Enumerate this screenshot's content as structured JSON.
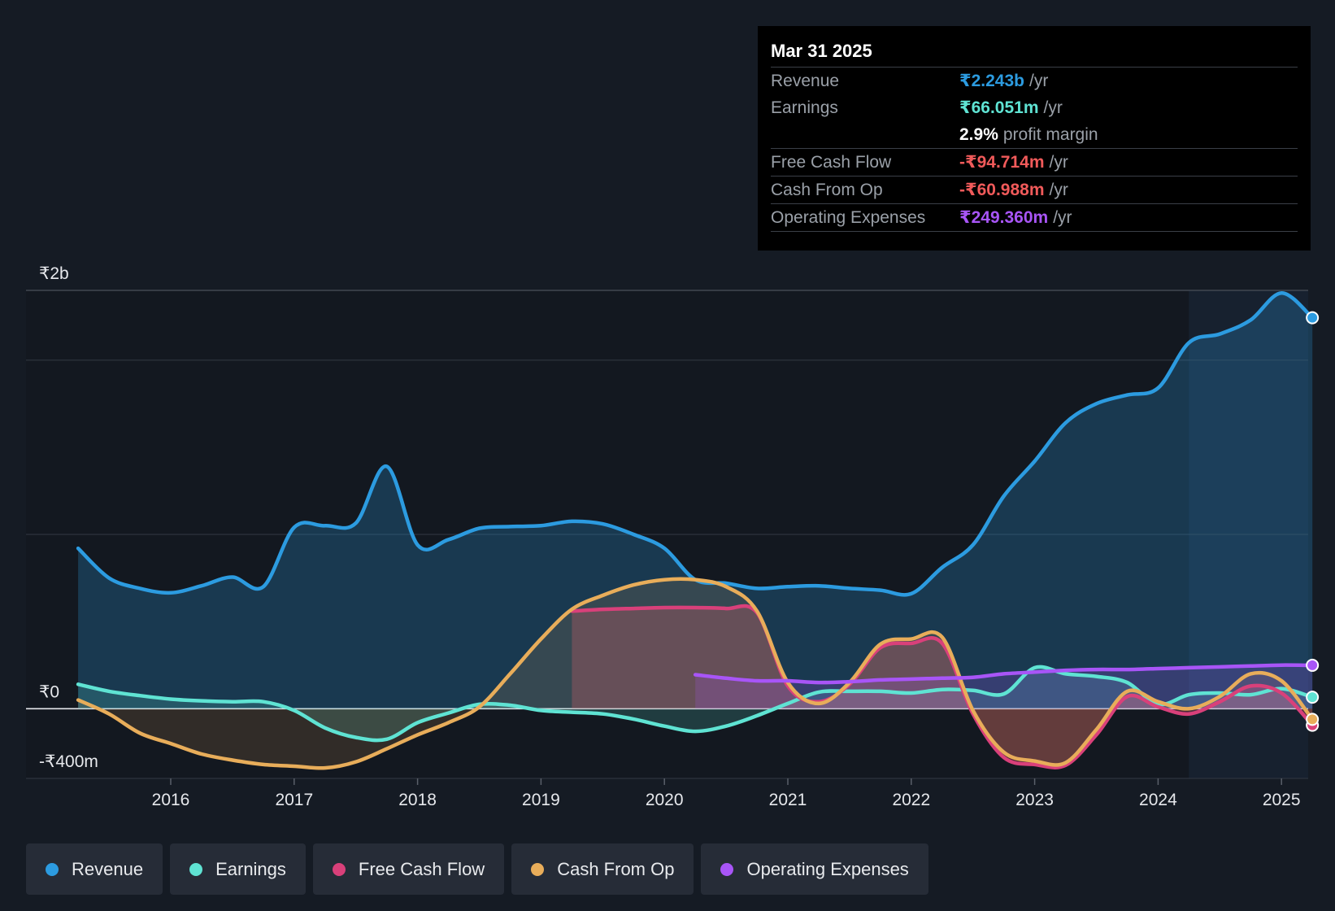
{
  "tooltip": {
    "date": "Mar 31 2025",
    "revenue": {
      "label": "Revenue",
      "value": "₹2.243b",
      "unit": "/yr",
      "color": "#2c9be0"
    },
    "earnings": {
      "label": "Earnings",
      "value": "₹66.051m",
      "unit": "/yr",
      "color": "#5fe3d3"
    },
    "margin": {
      "value": "2.9%",
      "text": "profit margin"
    },
    "fcf": {
      "label": "Free Cash Flow",
      "value": "-₹94.714m",
      "unit": "/yr",
      "color": "#f05a5a"
    },
    "cfo": {
      "label": "Cash From Op",
      "value": "-₹60.988m",
      "unit": "/yr",
      "color": "#f05a5a"
    },
    "opex": {
      "label": "Operating Expenses",
      "value": "₹249.360m",
      "unit": "/yr",
      "color": "#a855f7"
    }
  },
  "legend": [
    {
      "label": "Revenue",
      "color": "#2c9be0"
    },
    {
      "label": "Earnings",
      "color": "#5fe3d3"
    },
    {
      "label": "Free Cash Flow",
      "color": "#d9407a"
    },
    {
      "label": "Cash From Op",
      "color": "#e8ad5a"
    },
    {
      "label": "Operating Expenses",
      "color": "#a855f7"
    }
  ],
  "chart_data": {
    "type": "area",
    "x_ticks": [
      "2016",
      "2017",
      "2018",
      "2019",
      "2020",
      "2021",
      "2022",
      "2023",
      "2024",
      "2025"
    ],
    "y_ticks": [
      "₹2b",
      "₹0",
      "-₹400m"
    ],
    "ylim": [
      -400,
      2400
    ],
    "units": "₹m",
    "grid": true,
    "series": [
      {
        "name": "Revenue",
        "color": "#2c9be0",
        "points": [
          [
            2015.25,
            920
          ],
          [
            2015.5,
            750
          ],
          [
            2015.75,
            690
          ],
          [
            2016.0,
            665
          ],
          [
            2016.25,
            705
          ],
          [
            2016.5,
            755
          ],
          [
            2016.75,
            700
          ],
          [
            2017.0,
            1040
          ],
          [
            2017.25,
            1050
          ],
          [
            2017.5,
            1065
          ],
          [
            2017.75,
            1390
          ],
          [
            2018.0,
            940
          ],
          [
            2018.25,
            970
          ],
          [
            2018.5,
            1035
          ],
          [
            2018.75,
            1045
          ],
          [
            2019.0,
            1050
          ],
          [
            2019.25,
            1075
          ],
          [
            2019.5,
            1060
          ],
          [
            2019.75,
            1000
          ],
          [
            2020.0,
            920
          ],
          [
            2020.25,
            740
          ],
          [
            2020.5,
            720
          ],
          [
            2020.75,
            690
          ],
          [
            2021.0,
            700
          ],
          [
            2021.25,
            705
          ],
          [
            2021.5,
            690
          ],
          [
            2021.75,
            680
          ],
          [
            2022.0,
            660
          ],
          [
            2022.25,
            810
          ],
          [
            2022.5,
            940
          ],
          [
            2022.75,
            1220
          ],
          [
            2023.0,
            1420
          ],
          [
            2023.25,
            1640
          ],
          [
            2023.5,
            1750
          ],
          [
            2023.75,
            1800
          ],
          [
            2024.0,
            1840
          ],
          [
            2024.25,
            2100
          ],
          [
            2024.5,
            2150
          ],
          [
            2024.75,
            2230
          ],
          [
            2025.0,
            2385
          ],
          [
            2025.25,
            2243
          ]
        ]
      },
      {
        "name": "Earnings",
        "color": "#5fe3d3",
        "points": [
          [
            2015.25,
            140
          ],
          [
            2015.5,
            100
          ],
          [
            2015.75,
            75
          ],
          [
            2016.0,
            55
          ],
          [
            2016.25,
            45
          ],
          [
            2016.5,
            40
          ],
          [
            2016.75,
            40
          ],
          [
            2017.0,
            -10
          ],
          [
            2017.25,
            -110
          ],
          [
            2017.5,
            -165
          ],
          [
            2017.75,
            -175
          ],
          [
            2018.0,
            -80
          ],
          [
            2018.25,
            -25
          ],
          [
            2018.5,
            25
          ],
          [
            2018.75,
            20
          ],
          [
            2019.0,
            -10
          ],
          [
            2019.25,
            -20
          ],
          [
            2019.5,
            -30
          ],
          [
            2019.75,
            -60
          ],
          [
            2020.0,
            -100
          ],
          [
            2020.25,
            -130
          ],
          [
            2020.5,
            -100
          ],
          [
            2020.75,
            -40
          ],
          [
            2021.0,
            30
          ],
          [
            2021.25,
            95
          ],
          [
            2021.5,
            100
          ],
          [
            2021.75,
            100
          ],
          [
            2022.0,
            90
          ],
          [
            2022.25,
            110
          ],
          [
            2022.5,
            105
          ],
          [
            2022.75,
            85
          ],
          [
            2023.0,
            235
          ],
          [
            2023.25,
            200
          ],
          [
            2023.5,
            185
          ],
          [
            2023.75,
            150
          ],
          [
            2024.0,
            25
          ],
          [
            2024.25,
            80
          ],
          [
            2024.5,
            90
          ],
          [
            2024.75,
            80
          ],
          [
            2025.0,
            115
          ],
          [
            2025.25,
            66
          ]
        ]
      },
      {
        "name": "Free Cash Flow",
        "color": "#d9407a",
        "points": [
          [
            2019.25,
            560
          ],
          [
            2019.5,
            570
          ],
          [
            2019.75,
            575
          ],
          [
            2020.0,
            580
          ],
          [
            2020.25,
            580
          ],
          [
            2020.5,
            575
          ],
          [
            2020.75,
            550
          ],
          [
            2021.0,
            130
          ],
          [
            2021.25,
            40
          ],
          [
            2021.5,
            140
          ],
          [
            2021.75,
            350
          ],
          [
            2022.0,
            375
          ],
          [
            2022.25,
            375
          ],
          [
            2022.5,
            -30
          ],
          [
            2022.75,
            -280
          ],
          [
            2023.0,
            -320
          ],
          [
            2023.25,
            -325
          ],
          [
            2023.5,
            -150
          ],
          [
            2023.75,
            70
          ],
          [
            2024.0,
            10
          ],
          [
            2024.25,
            -30
          ],
          [
            2024.5,
            40
          ],
          [
            2024.75,
            130
          ],
          [
            2025.0,
            90
          ],
          [
            2025.25,
            -95
          ]
        ]
      },
      {
        "name": "Cash From Op",
        "color": "#e8ad5a",
        "points": [
          [
            2015.25,
            50
          ],
          [
            2015.5,
            -30
          ],
          [
            2015.75,
            -140
          ],
          [
            2016.0,
            -200
          ],
          [
            2016.25,
            -260
          ],
          [
            2016.5,
            -295
          ],
          [
            2016.75,
            -320
          ],
          [
            2017.0,
            -330
          ],
          [
            2017.25,
            -340
          ],
          [
            2017.5,
            -305
          ],
          [
            2017.75,
            -230
          ],
          [
            2018.0,
            -150
          ],
          [
            2018.25,
            -80
          ],
          [
            2018.5,
            10
          ],
          [
            2018.75,
            200
          ],
          [
            2019.0,
            400
          ],
          [
            2019.25,
            570
          ],
          [
            2019.5,
            650
          ],
          [
            2019.75,
            710
          ],
          [
            2020.0,
            740
          ],
          [
            2020.25,
            740
          ],
          [
            2020.5,
            700
          ],
          [
            2020.75,
            560
          ],
          [
            2021.0,
            150
          ],
          [
            2021.25,
            30
          ],
          [
            2021.5,
            150
          ],
          [
            2021.75,
            370
          ],
          [
            2022.0,
            400
          ],
          [
            2022.25,
            410
          ],
          [
            2022.5,
            -10
          ],
          [
            2022.75,
            -250
          ],
          [
            2023.0,
            -300
          ],
          [
            2023.25,
            -310
          ],
          [
            2023.5,
            -120
          ],
          [
            2023.75,
            100
          ],
          [
            2024.0,
            40
          ],
          [
            2024.25,
            0
          ],
          [
            2024.5,
            70
          ],
          [
            2024.75,
            200
          ],
          [
            2025.0,
            160
          ],
          [
            2025.25,
            -61
          ]
        ]
      },
      {
        "name": "Operating Expenses",
        "color": "#a855f7",
        "points": [
          [
            2020.25,
            195
          ],
          [
            2020.5,
            175
          ],
          [
            2020.75,
            160
          ],
          [
            2021.0,
            160
          ],
          [
            2021.25,
            150
          ],
          [
            2021.5,
            155
          ],
          [
            2021.75,
            165
          ],
          [
            2022.0,
            170
          ],
          [
            2022.25,
            175
          ],
          [
            2022.5,
            180
          ],
          [
            2022.75,
            200
          ],
          [
            2023.0,
            210
          ],
          [
            2023.25,
            220
          ],
          [
            2023.5,
            225
          ],
          [
            2023.75,
            225
          ],
          [
            2024.0,
            230
          ],
          [
            2024.25,
            235
          ],
          [
            2024.5,
            240
          ],
          [
            2024.75,
            245
          ],
          [
            2025.0,
            250
          ],
          [
            2025.25,
            249
          ]
        ]
      }
    ]
  }
}
